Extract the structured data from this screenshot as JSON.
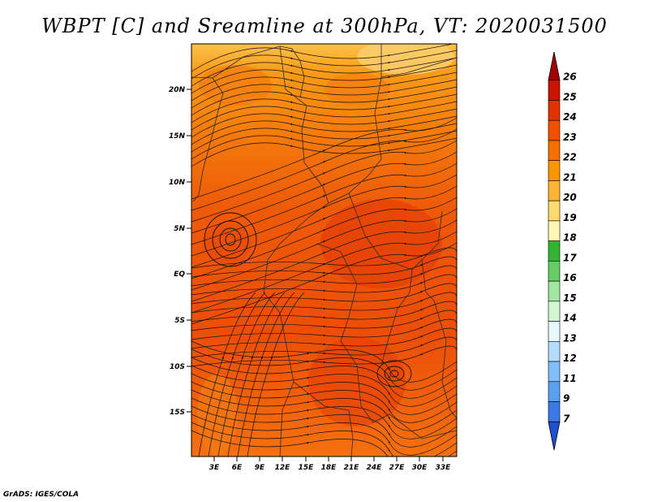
{
  "title": "WBPT [C] and Sreamline at 300hPa, VT: 2020031500",
  "credit": "GrADS: IGES/COLA",
  "map": {
    "lat_ticks": [
      "20N",
      "15N",
      "10N",
      "5N",
      "EQ",
      "5S",
      "10S",
      "15S"
    ],
    "lon_ticks": [
      "3E",
      "6E",
      "9E",
      "12E",
      "15E",
      "18E",
      "21E",
      "24E",
      "27E",
      "30E",
      "33E"
    ]
  },
  "colorbar": {
    "labels": [
      "26",
      "25",
      "24",
      "23",
      "22",
      "21",
      "20",
      "19",
      "18",
      "17",
      "16",
      "15",
      "14",
      "13",
      "12",
      "11",
      "9",
      "7"
    ],
    "colors": [
      "#a50000",
      "#c81400",
      "#e13200",
      "#f05000",
      "#f56e00",
      "#fa9600",
      "#fcb432",
      "#fdd96e",
      "#fef7b4",
      "#32b432",
      "#64cd64",
      "#a0e6a0",
      "#d2f5d2",
      "#e6f7ff",
      "#b4dcff",
      "#82befa",
      "#5aa0f0",
      "#3c78e6",
      "#1e50d2"
    ]
  }
}
